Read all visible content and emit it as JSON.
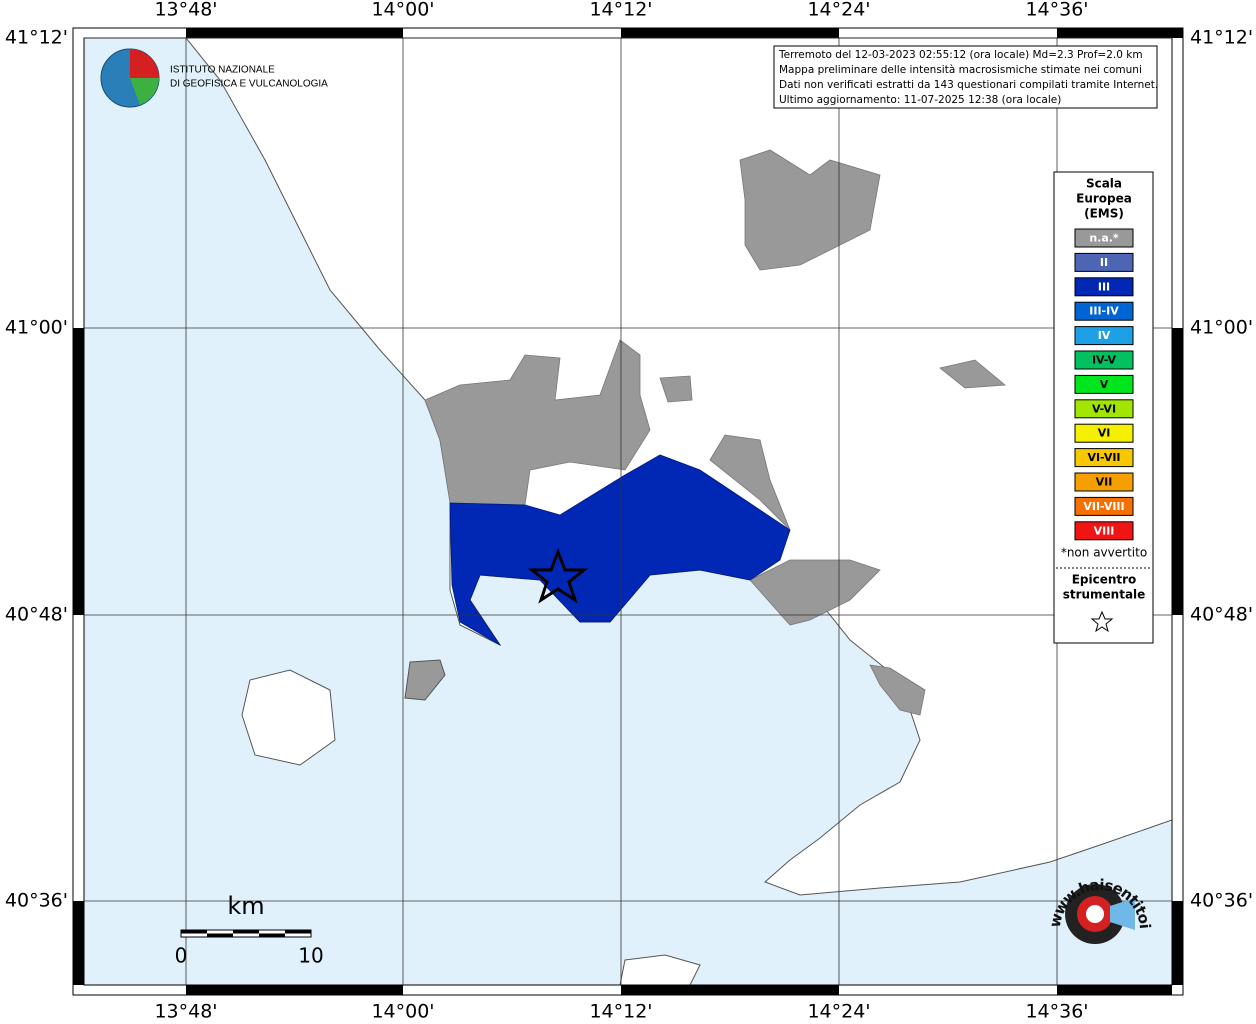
{
  "header": {
    "institute": [
      "ISTITUTO NAZIONALE",
      "DI GEOFISICA E VULCANOLOGIA"
    ]
  },
  "info": [
    "Terremoto del 12-03-2023 02:55:12 (ora locale) Md=2.3 Prof=2.0 km",
    "Mappa preliminare delle intensità macrosismiche stimate nei comuni",
    "Dati non verificati estratti da 143 questionari compilati tramite Internet.",
    "Ultimo aggiornamento: 11-07-2025 12:38 (ora locale)"
  ],
  "axes": {
    "lon": [
      "13°48'",
      "14°00'",
      "14°12'",
      "14°24'",
      "14°36'"
    ],
    "lat": [
      "41°12'",
      "41°00'",
      "40°48'",
      "40°36'"
    ]
  },
  "legend": {
    "title": [
      "Scala",
      "Europea",
      "(EMS)"
    ],
    "items": [
      {
        "label": "n.a.*",
        "color": "#999999"
      },
      {
        "label": "II",
        "color": "#4d65b5"
      },
      {
        "label": "III",
        "color": "#0028b4"
      },
      {
        "label": "III-IV",
        "color": "#0064d2"
      },
      {
        "label": "IV",
        "color": "#1ea0e6"
      },
      {
        "label": "IV-V",
        "color": "#00c060"
      },
      {
        "label": "V",
        "color": "#00e61e"
      },
      {
        "label": "V-VI",
        "color": "#a0e600"
      },
      {
        "label": "VI",
        "color": "#f5f000"
      },
      {
        "label": "VI-VII",
        "color": "#f5c800"
      },
      {
        "label": "VII",
        "color": "#f5a000"
      },
      {
        "label": "VII-VIII",
        "color": "#f57000"
      },
      {
        "label": "VIII",
        "color": "#f01414"
      }
    ],
    "note": "*non avvertito",
    "epicenter": [
      "Epicentro",
      "strumentale"
    ]
  },
  "scale": {
    "unit": "km",
    "labels": [
      "0",
      "10"
    ]
  },
  "logo": "www.haisentitoilterremoto.it"
}
